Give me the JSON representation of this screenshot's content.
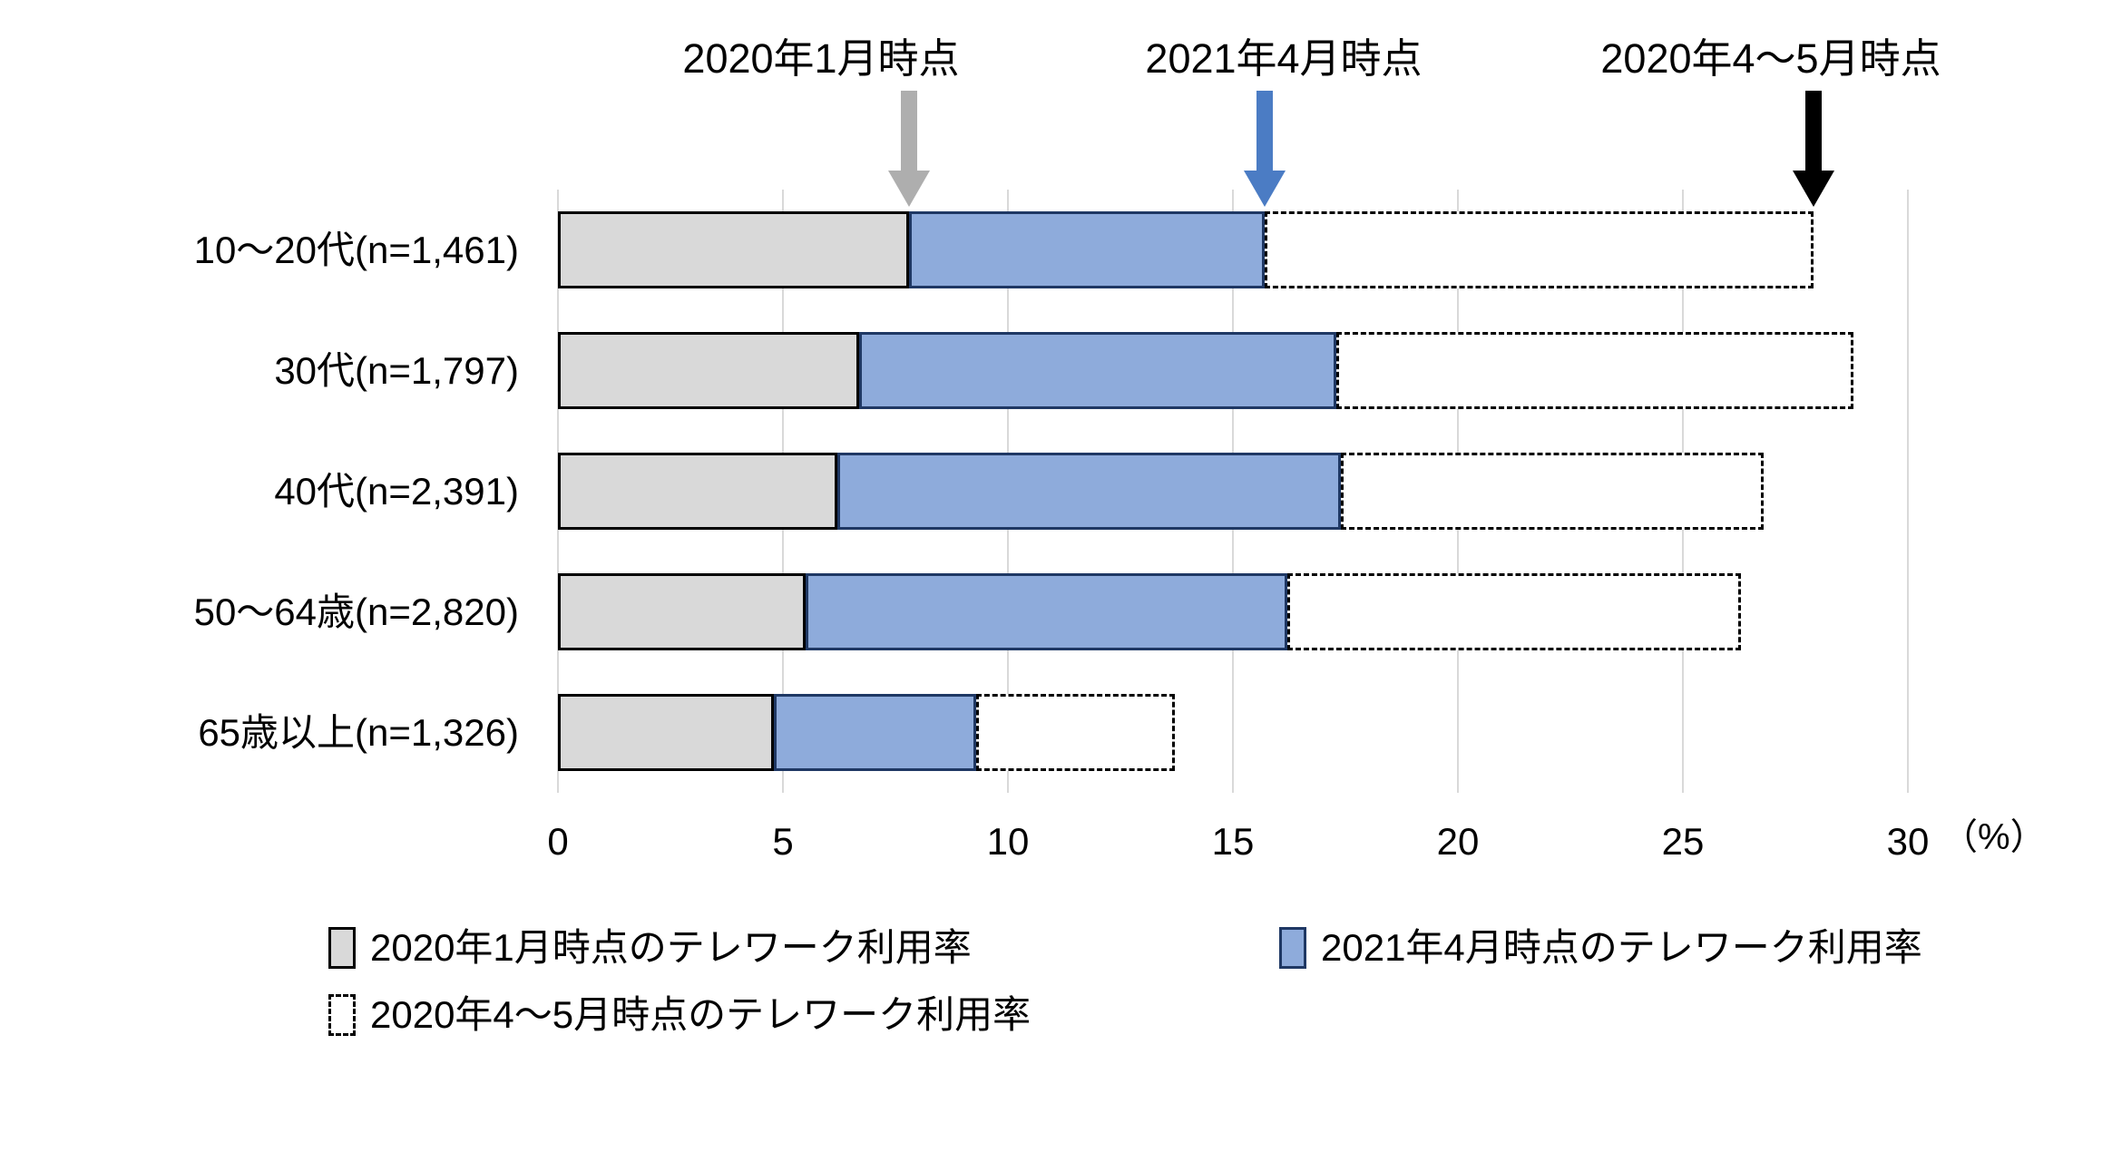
{
  "chart_data": {
    "type": "bar",
    "orientation": "horizontal",
    "title": "",
    "xlabel": "",
    "ylabel": "",
    "axis_unit_label": "（%）",
    "xlim": [
      0,
      30
    ],
    "x_ticks": [
      0,
      5,
      10,
      15,
      20,
      25,
      30
    ],
    "grid": true,
    "categories": [
      "10〜20代(n=1,461)",
      "30代(n=1,797)",
      "40代(n=2,391)",
      "50〜64歳(n=2,820)",
      "65歳以上(n=1,326)"
    ],
    "series": [
      {
        "name": "2020年1月時点のテレワーク利用率",
        "style": "solid-gray",
        "fill": "#d9d9d9",
        "border": "#000000",
        "values": [
          7.8,
          6.7,
          6.2,
          5.5,
          4.8
        ]
      },
      {
        "name": "2021年4月時点のテレワーク利用率",
        "style": "solid-blue",
        "fill": "#8eabdb",
        "border": "#1f3864",
        "values": [
          15.7,
          17.3,
          17.4,
          16.2,
          9.3
        ]
      },
      {
        "name": "2020年4〜5月時点のテレワーク利用率",
        "style": "dashed-outline",
        "fill": "#ffffff",
        "border": "#000000",
        "values": [
          27.9,
          28.8,
          26.8,
          26.3,
          13.7
        ]
      }
    ],
    "annotations": [
      {
        "label": "2020年1月時点",
        "value": 7.8,
        "arrow_color": "#aeaeae"
      },
      {
        "label": "2021年4月時点",
        "value": 15.7,
        "arrow_color": "#4b7cc4"
      },
      {
        "label": "2020年4〜5月時点",
        "value": 27.9,
        "arrow_color": "#000000"
      }
    ],
    "legend_position": "bottom",
    "gridline_color": "#d9d9d9"
  }
}
